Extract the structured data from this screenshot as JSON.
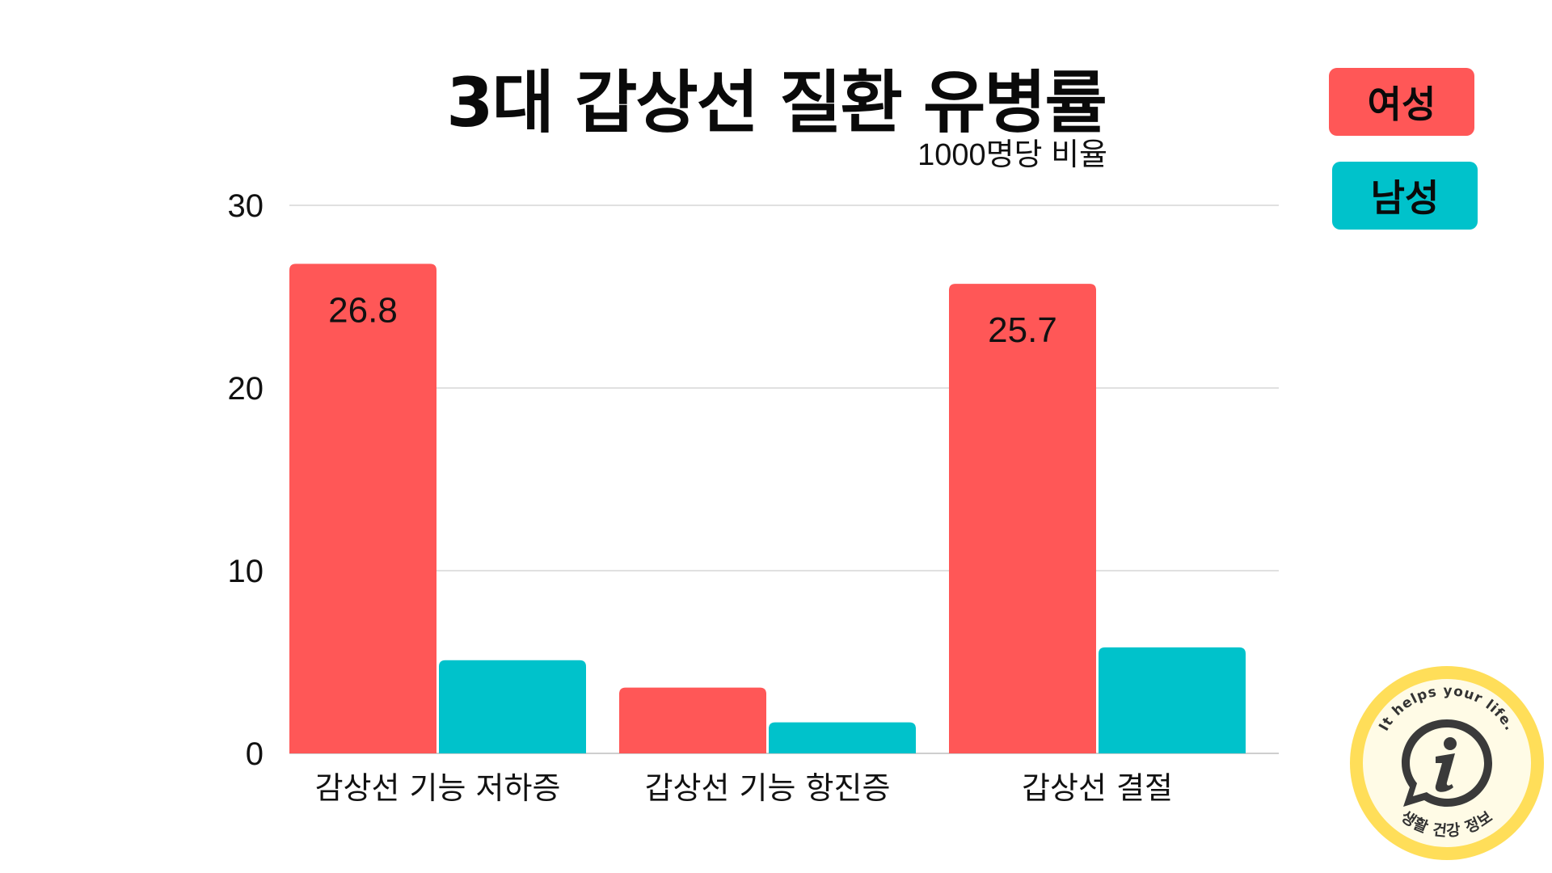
{
  "chart_data": {
    "type": "bar",
    "title": "3대 갑상선 질환 유병률",
    "subtitle": "1000명당 비율",
    "categories": [
      "감상선 기능 저하증",
      "갑상선 기능 항진증",
      "갑상선 결절"
    ],
    "series": [
      {
        "name": "여성",
        "color": "#FF5757",
        "values": [
          26.8,
          3.6,
          25.7
        ],
        "labels": [
          "26.8",
          "",
          "25.7"
        ]
      },
      {
        "name": "남성",
        "color": "#00C2CB",
        "values": [
          5.1,
          1.7,
          5.8
        ],
        "labels": [
          "",
          "",
          ""
        ]
      }
    ],
    "yticks": [
      0,
      10,
      20,
      30
    ],
    "ylim": [
      0,
      30
    ],
    "grid": true,
    "legend_position": "top-right"
  },
  "badge": {
    "top_text": "It helps your life.",
    "bottom_text": "생활 건강 정보",
    "icon": "info-chat-icon",
    "ring_color": "#FFDE59",
    "fill_color": "#FFFBE6"
  }
}
